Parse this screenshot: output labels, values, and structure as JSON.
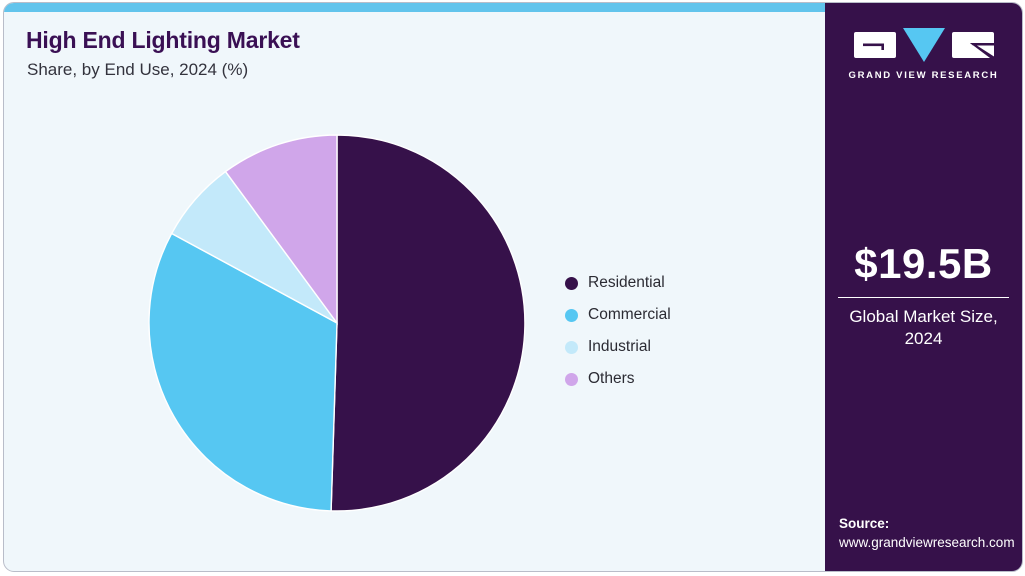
{
  "header": {
    "title": "High End Lighting Market",
    "subtitle": "Share, by End Use, 2024 (%)"
  },
  "chart_data": {
    "type": "pie",
    "title": "High End Lighting Market Share, by End Use, 2024 (%)",
    "categories": [
      "Residential",
      "Commercial",
      "Industrial",
      "Others"
    ],
    "values": [
      50.5,
      32.4,
      7.0,
      10.1
    ],
    "unit": "%",
    "colors": [
      "#36114a",
      "#56c7f2",
      "#c3e9fa",
      "#d0a6ea"
    ],
    "start_angle_deg": 0,
    "direction": "clockwise",
    "legend_position": "right",
    "slice_edge_color": "#ffffff"
  },
  "sidebar": {
    "logo_text": "GRAND VIEW RESEARCH",
    "market_size": "$19.5B",
    "market_label": "Global Market Size, 2024",
    "source_label": "Source:",
    "source_url": "www.grandviewresearch.com"
  },
  "colors": {
    "accent_bar": "#62c4ec",
    "sidebar_bg": "#36114a",
    "card_bg": "#f0f7fb",
    "title_text": "#3a1054",
    "logo_triangle": "#56c7f2"
  }
}
